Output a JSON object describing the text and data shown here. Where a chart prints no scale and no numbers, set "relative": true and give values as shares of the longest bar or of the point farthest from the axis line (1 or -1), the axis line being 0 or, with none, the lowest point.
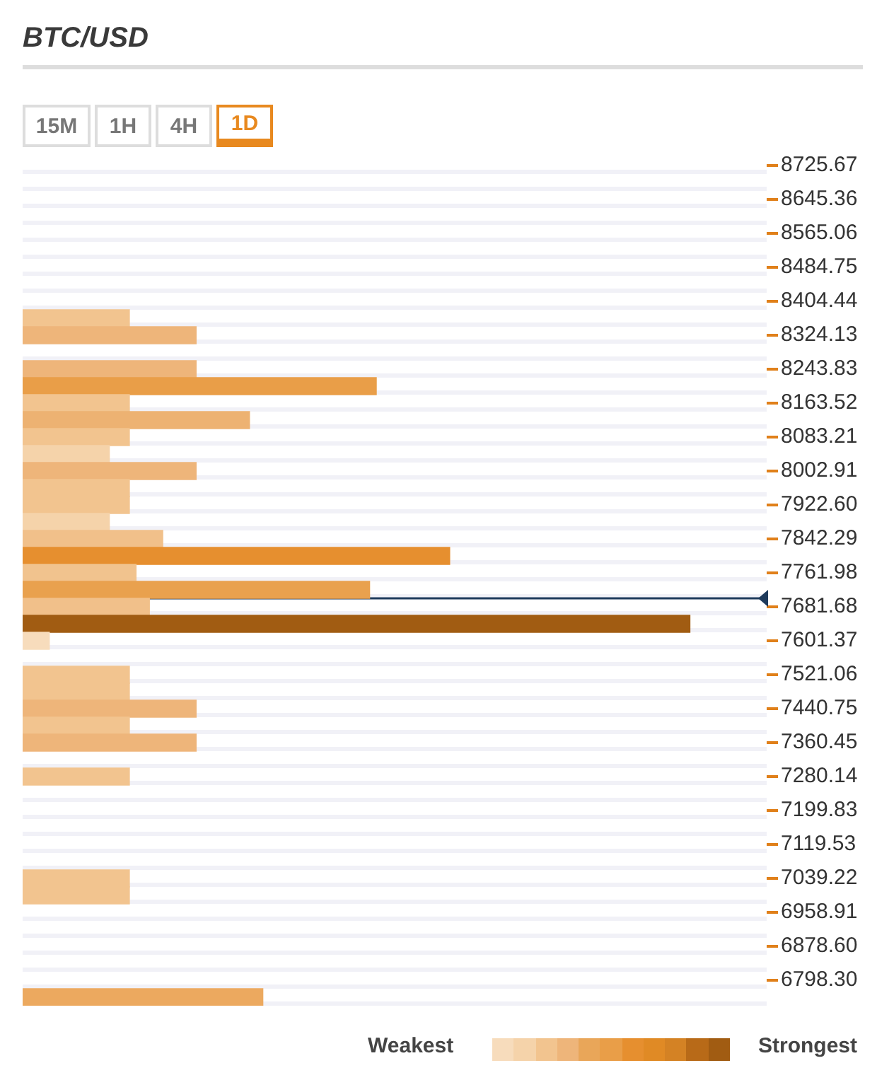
{
  "chart_data": {
    "type": "bar",
    "title": "BTC/USD",
    "orientation": "horizontal",
    "relative": true,
    "legend": false,
    "grid": false,
    "x": [
      8364.29,
      8324.13,
      8243.83,
      8203.68,
      8163.52,
      8123.37,
      8083.21,
      8043.06,
      8002.91,
      7962.76,
      7922.6,
      7882.45,
      7842.29,
      7802.14,
      7761.98,
      7721.83,
      7681.68,
      7641.53,
      7601.37,
      7521.06,
      7480.91,
      7440.75,
      7400.6,
      7360.45,
      7280.14,
      7039.22,
      6999.07,
      6758.15
    ],
    "values": [
      0.16,
      0.26,
      0.26,
      0.53,
      0.16,
      0.34,
      0.16,
      0.13,
      0.26,
      0.16,
      0.16,
      0.13,
      0.21,
      0.64,
      0.17,
      0.52,
      0.19,
      1,
      0.04,
      0.16,
      0.16,
      0.26,
      0.16,
      0.26,
      0.16,
      0.16,
      0.16,
      0.36
    ],
    "colors": [
      "#f2c48f",
      "#eeb57a",
      "#eeb57a",
      "#e99e48",
      "#f2c48f",
      "#edb272",
      "#f2c48f",
      "#f5d3aa",
      "#eeb57a",
      "#f2c48f",
      "#f2c48f",
      "#f5d3aa",
      "#f1c08a",
      "#e68f2f",
      "#f1c38e",
      "#e9a14e",
      "#f1c08a",
      "#a15c12",
      "#f7dcbc",
      "#f2c48f",
      "#f2c48f",
      "#eeb57a",
      "#f2c48f",
      "#eeb57a",
      "#f2c48f",
      "#f2c48f",
      "#f2c48f",
      "#eca95f"
    ],
    "ylim": [
      6738.07,
      8745.75
    ],
    "yticks": [
      8725.67,
      8645.36,
      8565.06,
      8484.75,
      8404.44,
      8324.13,
      8243.83,
      8163.52,
      8083.21,
      8002.91,
      {
        "value": 7922.6,
        "label": "7922.60"
      },
      7842.29,
      7761.98,
      7681.68,
      7601.37,
      7521.06,
      7440.75,
      7360.45,
      7280.14,
      7199.83,
      7119.53,
      7039.22,
      6958.91,
      {
        "value": 6878.6,
        "label": "6878.60"
      },
      {
        "value": 6798.3,
        "label": "6798.30"
      }
    ],
    "ref_lines": [
      {
        "axis": "y",
        "value": 7701.75,
        "color": "#1f3b5c"
      }
    ],
    "annotations": [
      "15M",
      "1H",
      "4H",
      "1D",
      "Weakest",
      "Strongest"
    ]
  }
}
